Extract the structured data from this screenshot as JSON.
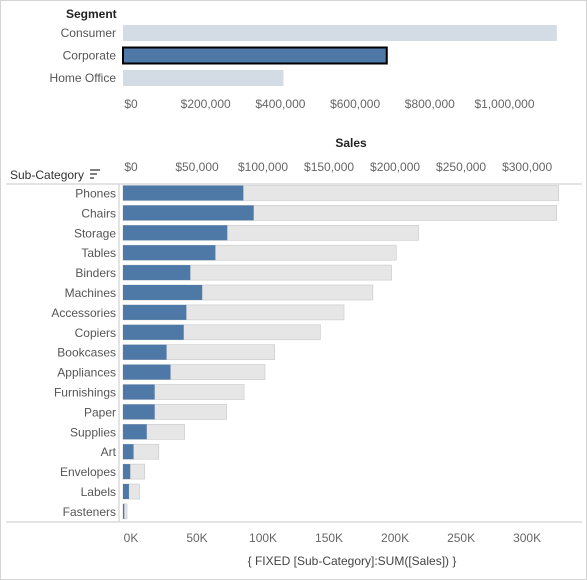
{
  "colors": {
    "selected_bar": "#4e79a7",
    "unselected_segment_bar": "#d3dbe4",
    "background_bar": "#e6e6e6",
    "selection_border": "#000000",
    "axis_line": "#c8c8c8"
  },
  "chart_data": [
    {
      "type": "bar",
      "orientation": "horizontal",
      "header": "Segment",
      "categories": [
        "Consumer",
        "Corporate",
        "Home Office"
      ],
      "values": [
        1161401,
        706146,
        429653
      ],
      "selected": "Corporate",
      "xlabel": "Sales",
      "xlim": [
        0,
        1170000
      ],
      "xticks": [
        0,
        200000,
        400000,
        600000,
        800000,
        1000000
      ],
      "xtick_labels": [
        "$0",
        "$200,000",
        "$400,000",
        "$600,000",
        "$800,000",
        "$1,000,000"
      ],
      "grid": false
    },
    {
      "type": "bar",
      "orientation": "horizontal",
      "header": "Sub-Category",
      "categories": [
        "Phones",
        "Chairs",
        "Storage",
        "Tables",
        "Binders",
        "Machines",
        "Accessories",
        "Copiers",
        "Bookcases",
        "Appliances",
        "Furnishings",
        "Paper",
        "Supplies",
        "Art",
        "Envelopes",
        "Labels",
        "Fasteners"
      ],
      "series": [
        {
          "role": "total",
          "values": [
            330007,
            328449,
            223844,
            206966,
            203413,
            189239,
            167380,
            149528,
            114880,
            107532,
            91705,
            78479,
            46674,
            27119,
            16476,
            12486,
            3024
          ]
        },
        {
          "role": "selected_segment",
          "values": [
            91153,
            99000,
            79000,
            70000,
            51000,
            60000,
            48000,
            46000,
            33000,
            36000,
            24000,
            24000,
            18000,
            8000,
            5500,
            4500,
            1000
          ]
        }
      ],
      "top_axis": {
        "title": "Sales",
        "ticks": [
          0,
          50000,
          100000,
          150000,
          200000,
          250000,
          300000
        ],
        "tick_labels": [
          "$0",
          "$50,000",
          "$100,000",
          "$150,000",
          "$200,000",
          "$250,000",
          "$300,000"
        ]
      },
      "bottom_axis": {
        "title": "{ FIXED [Sub-Category]:SUM([Sales]) }",
        "ticks": [
          0,
          50000,
          100000,
          150000,
          200000,
          250000,
          300000
        ],
        "tick_labels": [
          "0K",
          "50K",
          "100K",
          "150K",
          "200K",
          "250K",
          "300K"
        ]
      },
      "xlim": [
        0,
        330000
      ],
      "grid": false
    }
  ]
}
